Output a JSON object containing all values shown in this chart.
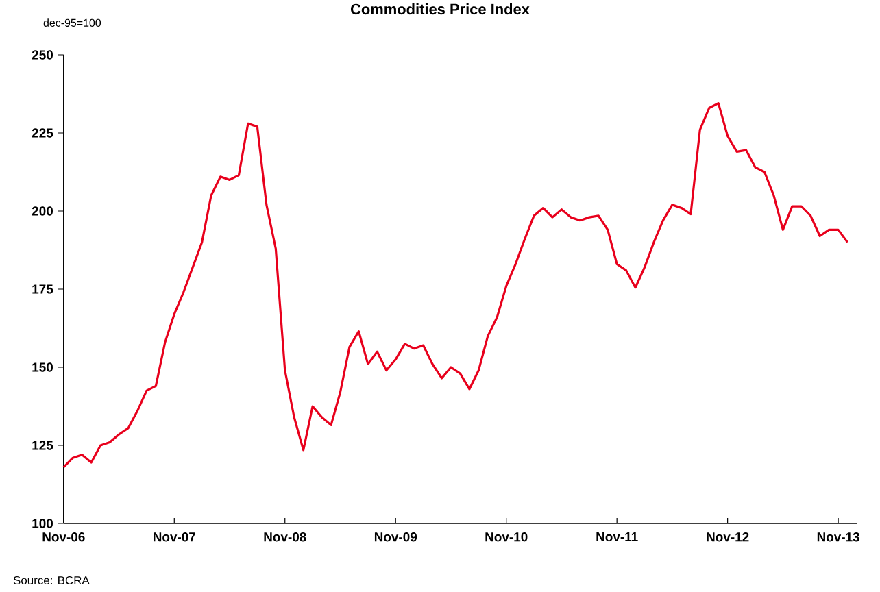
{
  "chart_data": {
    "type": "line",
    "title": "Commodities Price Index",
    "ylabel": "dec-95=100",
    "annotations": [
      "Source: BCRA"
    ],
    "categories": [
      "Nov-06",
      null,
      null,
      null,
      null,
      null,
      null,
      null,
      null,
      null,
      null,
      null,
      "Nov-07",
      null,
      null,
      null,
      null,
      null,
      null,
      null,
      null,
      null,
      null,
      null,
      "Nov-08",
      null,
      null,
      null,
      null,
      null,
      null,
      null,
      null,
      null,
      null,
      null,
      "Nov-09",
      null,
      null,
      null,
      null,
      null,
      null,
      null,
      null,
      null,
      null,
      null,
      "Nov-10",
      null,
      null,
      null,
      null,
      null,
      null,
      null,
      null,
      null,
      null,
      null,
      "Nov-11",
      null,
      null,
      null,
      null,
      null,
      null,
      null,
      null,
      null,
      null,
      null,
      "Nov-12",
      null,
      null,
      null,
      null,
      null,
      null,
      null,
      null,
      null,
      null,
      null,
      "Nov-13",
      null
    ],
    "values": [
      118,
      121,
      122,
      119.5,
      125,
      126,
      128.5,
      130.5,
      136,
      142.5,
      144,
      158,
      167,
      174,
      182,
      190,
      205,
      211,
      210,
      211.5,
      228,
      227,
      202,
      188,
      149,
      134,
      123.5,
      137.5,
      134,
      131.5,
      142,
      156.5,
      161.5,
      151,
      155,
      149,
      152.5,
      157.5,
      156,
      157,
      151,
      146.5,
      150,
      148,
      143,
      149,
      160,
      166,
      176,
      183,
      191,
      198.5,
      201,
      198,
      200.5,
      198,
      197,
      198,
      198.5,
      194,
      183,
      181,
      175.5,
      182,
      190,
      197,
      202,
      201,
      199,
      226,
      233,
      234.5,
      224,
      219,
      219.5,
      214,
      212.5,
      205,
      194,
      201.5,
      201.5,
      198.5,
      192,
      194,
      194,
      190
    ],
    "color": "#e8001c",
    "ylim": [
      100,
      250
    ],
    "yticks": [
      100,
      125,
      150,
      175,
      200,
      225,
      250
    ]
  }
}
